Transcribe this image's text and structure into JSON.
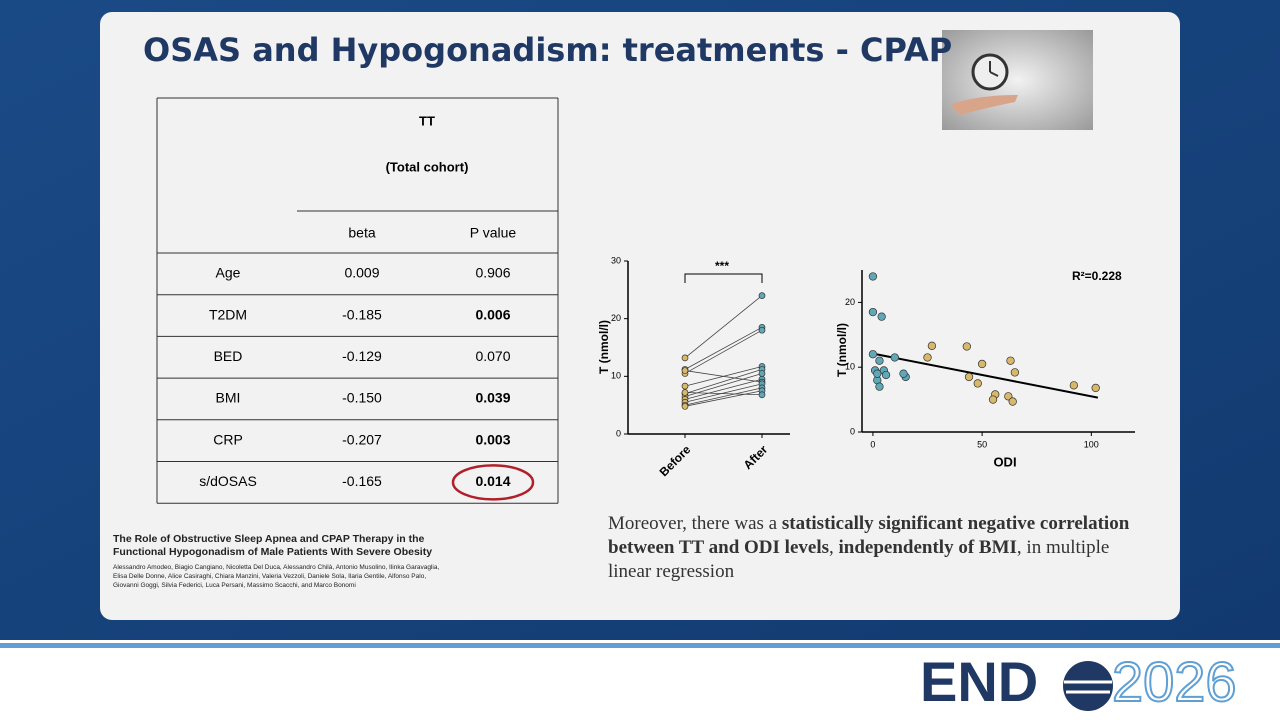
{
  "slide": {
    "title": "OSAS and Hypogonadism: treatments - CPAP"
  },
  "table": {
    "header": [
      "TT",
      "(Total cohort)"
    ],
    "columns": [
      "beta",
      "P value"
    ],
    "rows": [
      [
        "Age",
        "0.009",
        "0.906"
      ],
      [
        "T2DM",
        "-0.185",
        "0.006"
      ],
      [
        "BED",
        "-0.129",
        "0.070"
      ],
      [
        "BMI",
        "-0.150",
        "0.039"
      ],
      [
        "CRP",
        "-0.207",
        "0.003"
      ],
      [
        "s/dOSAS",
        "-0.165",
        "0.014"
      ]
    ],
    "bold_p": [
      false,
      true,
      false,
      true,
      true,
      true
    ],
    "highlight_row": 5
  },
  "citation": {
    "title": "The Role of Obstructive Sleep Apnea and CPAP Therapy in the Functional Hypogonadism of Male Patients With Severe Obesity",
    "authors": "Alessandro Amodeo, Biagio Cangiano, Nicoletta Del Duca, Alessandro Chilà, Antonio Musolino, Ilinka Garavaglia, Elisa Delle Donne, Alice Casiraghi, Chiara Manzini, Valeria Vezzoli, Daniele Sola, Ilaria Gentile, Alfonso Palo, Giovanni Goggi, Silvia Federici, Luca Persani, Massimo Scacchi, and Marco Bonomi"
  },
  "body": {
    "segments": [
      {
        "text": "Moreover, there was a ",
        "bold": false
      },
      {
        "text": "statistically significant negative correlation between TT and ODI levels",
        "bold": true
      },
      {
        "text": ", ",
        "bold": false
      },
      {
        "text": "independently of BMI",
        "bold": true
      },
      {
        "text": ", in multiple linear regression",
        "bold": false
      }
    ]
  },
  "logo": {
    "left": "END",
    "right": "2026"
  },
  "chart_data": [
    {
      "type": "paired",
      "y_label": "T (nmol/l)",
      "categories": [
        "Before",
        "After"
      ],
      "annotation": "***",
      "ylim": [
        0,
        30
      ],
      "yticks": [
        0,
        10,
        20,
        30
      ],
      "colors": [
        "#d8b86a",
        "#5fa8b8"
      ],
      "series": [
        {
          "values": [
            13.2,
            24
          ]
        },
        {
          "values": [
            11.2,
            18.5
          ]
        },
        {
          "values": [
            10.5,
            18
          ]
        },
        {
          "values": [
            8.3,
            11.7
          ]
        },
        {
          "values": [
            7,
            11.2
          ]
        },
        {
          "values": [
            6.5,
            10.5
          ]
        },
        {
          "values": [
            6,
            9.5
          ]
        },
        {
          "values": [
            11,
            9
          ]
        },
        {
          "values": [
            5.5,
            8.7
          ]
        },
        {
          "values": [
            5,
            8
          ]
        },
        {
          "values": [
            4.8,
            7.5
          ]
        },
        {
          "values": [
            7.2,
            6.8
          ]
        }
      ]
    },
    {
      "type": "scatter",
      "x_label": "ODI",
      "y_label": "T (nmol/l)",
      "annotation": "R²=0.228",
      "xlim": [
        -5,
        120
      ],
      "xticks": [
        0,
        50,
        100
      ],
      "ylim": [
        0,
        25
      ],
      "yticks": [
        0,
        10,
        20
      ],
      "series": [
        {
          "color": "#5fa8b8",
          "x": [
            0,
            0,
            4,
            0,
            3,
            10,
            1,
            2,
            5,
            6,
            3,
            15,
            14,
            2
          ],
          "values": [
            24,
            18.5,
            17.8,
            12,
            11,
            11.5,
            9.5,
            8,
            9.5,
            8.8,
            7,
            8.5,
            9,
            9
          ]
        },
        {
          "color": "#d8b86a",
          "x": [
            27,
            25,
            43,
            50,
            44,
            48,
            63,
            65,
            56,
            55,
            62,
            64,
            92,
            102
          ],
          "values": [
            13.3,
            11.5,
            13.2,
            10.5,
            8.5,
            7.5,
            11,
            9.2,
            5.8,
            5,
            5.5,
            4.7,
            7.2,
            6.8
          ]
        }
      ],
      "fit": {
        "x": [
          0,
          103
        ],
        "values": [
          12.1,
          5.3
        ]
      }
    }
  ]
}
